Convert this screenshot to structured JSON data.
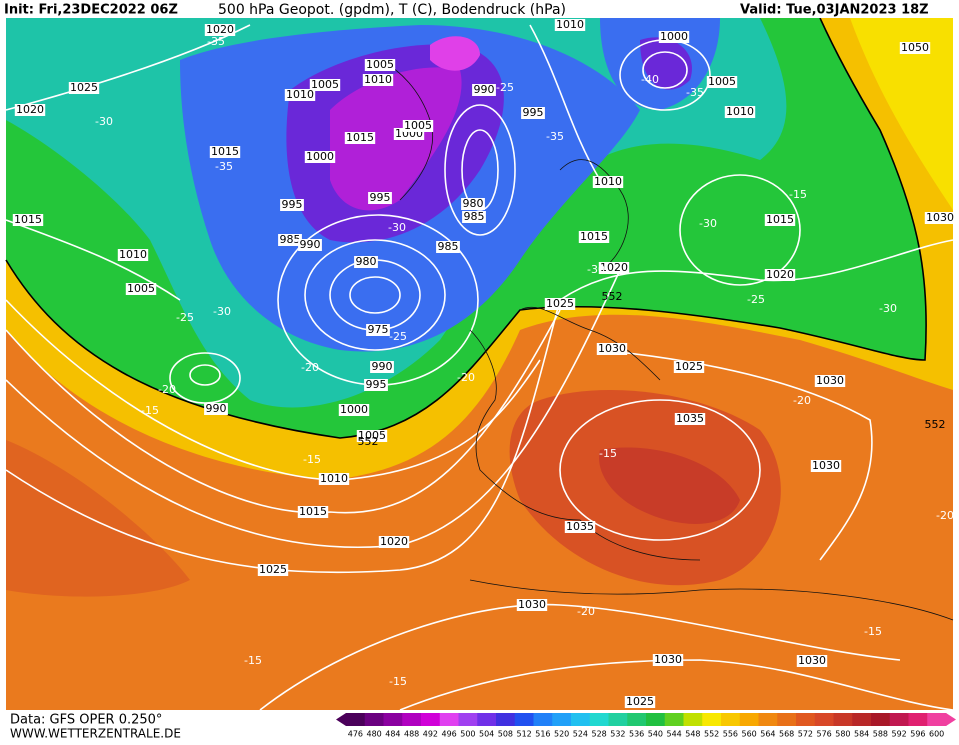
{
  "header": {
    "init": "Init: Fri,23DEC2022 06Z",
    "title": "500 hPa Geopot. (gpdm), T (C), Bodendruck (hPa)",
    "valid": "Valid: Tue,03JAN2023 18Z"
  },
  "footer": {
    "data_source": "Data: GFS OPER 0.250°",
    "website": "WWW.WETTERZENTRALE.DE"
  },
  "legend": {
    "values": [
      476,
      480,
      484,
      488,
      492,
      496,
      500,
      504,
      508,
      512,
      516,
      520,
      524,
      528,
      532,
      536,
      540,
      544,
      548,
      552,
      556,
      560,
      564,
      568,
      572,
      576,
      580,
      584,
      588,
      592,
      596,
      600
    ],
    "colors": [
      "#4a005a",
      "#6a0080",
      "#8a00a0",
      "#b000c0",
      "#d000d8",
      "#e040f0",
      "#a040f0",
      "#7030e8",
      "#4030e0",
      "#2050f0",
      "#2080f8",
      "#20a0f8",
      "#20c0f0",
      "#20d8d0",
      "#20d0a0",
      "#20c870",
      "#20c040",
      "#60d020",
      "#c0e000",
      "#f8e800",
      "#f8c800",
      "#f8a800",
      "#f08810",
      "#e87018",
      "#e05820",
      "#d84828",
      "#c83828",
      "#b82828",
      "#a81828",
      "#c01850",
      "#e02070",
      "#f040a0"
    ]
  },
  "map": {
    "isobar_labels": [
      "1020",
      "1025",
      "1020",
      "1005",
      "1010",
      "1005",
      "1010",
      "1015",
      "1015",
      "1000",
      "1005",
      "1000",
      "995",
      "995",
      "985",
      "990",
      "980",
      "985",
      "985",
      "980",
      "975",
      "990",
      "995",
      "1000",
      "1005",
      "990",
      "1010",
      "1005",
      "1015",
      "1010",
      "1000",
      "1005",
      "1010",
      "990",
      "995",
      "1010",
      "1015",
      "1020",
      "1025",
      "1030",
      "1025",
      "1030",
      "1035",
      "1030",
      "1015",
      "1020",
      "1050",
      "1030",
      "1010",
      "1015",
      "1020",
      "1025",
      "1035",
      "1030",
      "1030",
      "1030",
      "1025"
    ],
    "temperature_labels": [
      "-35",
      "-30",
      "-35",
      "-25",
      "-30",
      "-20",
      "-15",
      "-20",
      "-25",
      "-30",
      "-35",
      "-40",
      "-35",
      "-25",
      "-30",
      "-15",
      "-25",
      "-30",
      "-20",
      "-20",
      "-15",
      "-15",
      "-20",
      "-15",
      "-15",
      "-15",
      "-20",
      "-30"
    ],
    "geopotential_labels": [
      "552",
      "552",
      "552"
    ]
  }
}
